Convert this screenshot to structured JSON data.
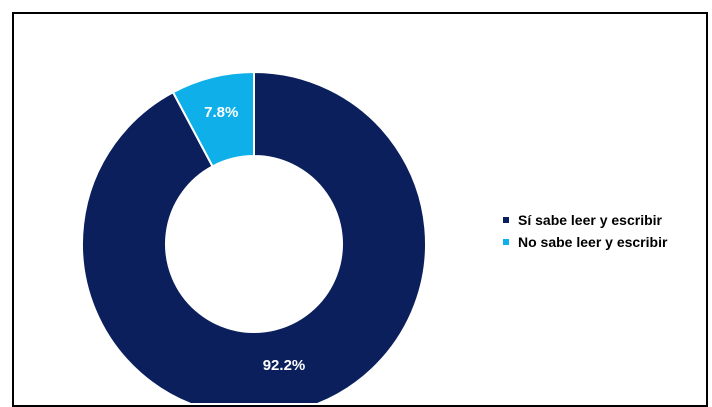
{
  "chart_data": {
    "type": "pie",
    "categories": [
      "Sí sabe leer y escribir",
      "No sabe leer y escribir"
    ],
    "values": [
      92.2,
      7.8
    ],
    "data_labels": [
      "92.2%",
      "7.8%"
    ],
    "colors": [
      "#0a1f5c",
      "#0fb0ea"
    ],
    "legend_position": "right",
    "title": "",
    "donut": true
  }
}
